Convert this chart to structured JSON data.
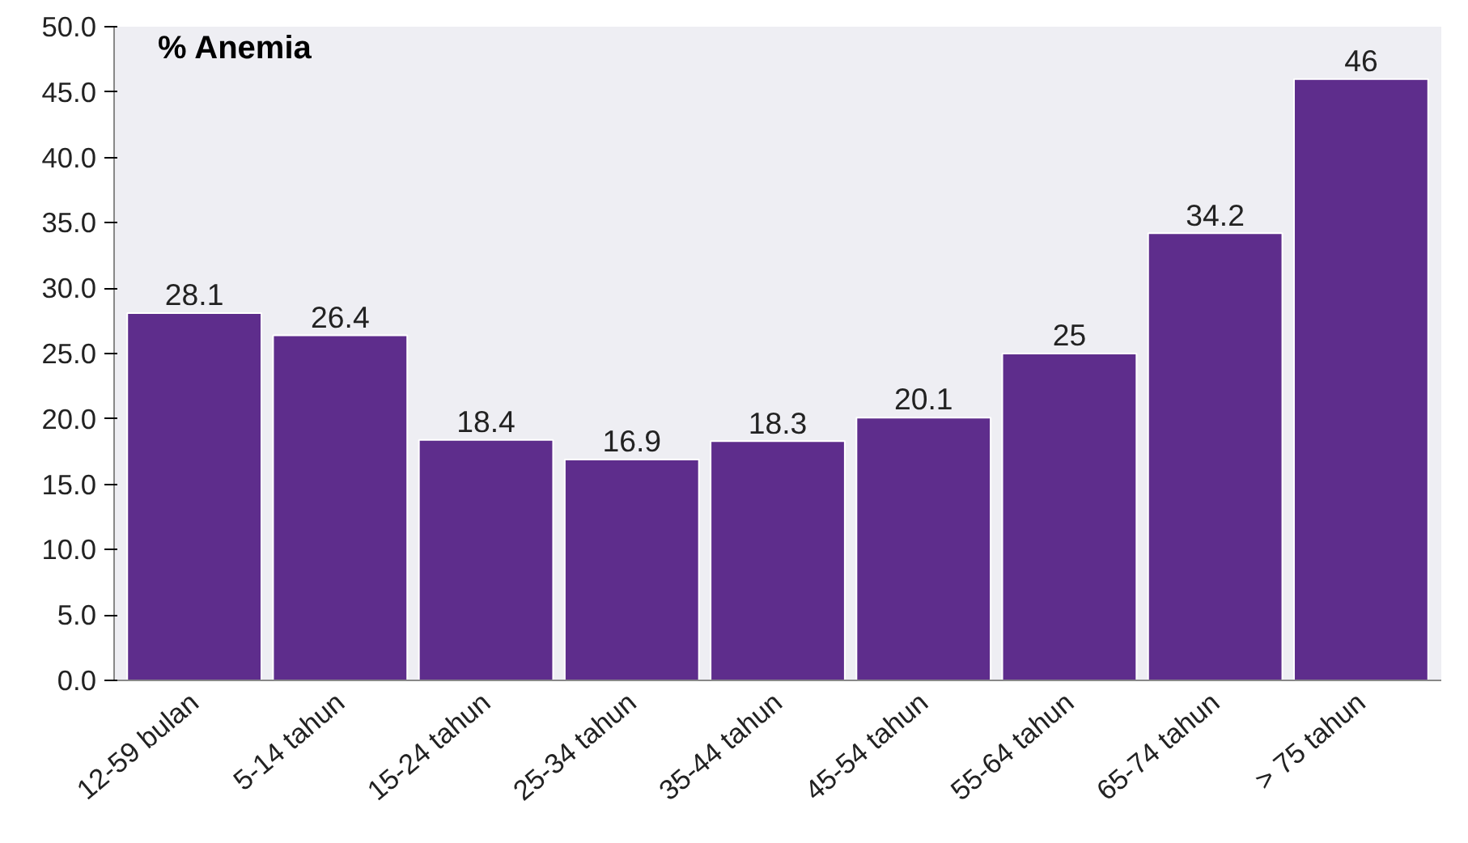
{
  "chart_data": {
    "type": "bar",
    "title": "% Anemia",
    "categories": [
      "12-59 bulan",
      "5-14 tahun",
      "15-24 tahun",
      "25-34 tahun",
      "35-44 tahun",
      "45-54 tahun",
      "55-64 tahun",
      "65-74 tahun",
      "> 75 tahun"
    ],
    "values": [
      28.1,
      26.4,
      18.4,
      16.9,
      18.3,
      20.1,
      25,
      34.2,
      46
    ],
    "color": "#5e2d8c",
    "ylim": [
      0,
      50
    ],
    "yticks": [
      {
        "value": 0,
        "label": "0.0"
      },
      {
        "value": 5,
        "label": "5.0"
      },
      {
        "value": 10,
        "label": "10.0"
      },
      {
        "value": 15,
        "label": "15.0"
      },
      {
        "value": 20,
        "label": "20.0"
      },
      {
        "value": 25,
        "label": "25.0"
      },
      {
        "value": 30,
        "label": "30.0"
      },
      {
        "value": 35,
        "label": "35.0"
      },
      {
        "value": 40,
        "label": "40.0"
      },
      {
        "value": 45,
        "label": "45.0"
      },
      {
        "value": 50,
        "label": "50.0"
      }
    ],
    "data_labels": true,
    "grid": false
  }
}
